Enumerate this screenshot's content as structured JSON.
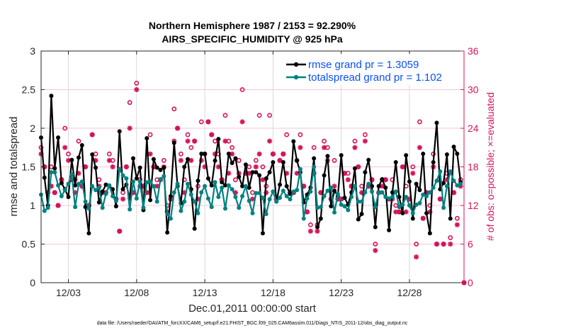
{
  "chart_data": {
    "type": "line",
    "title": [
      "Northern Hemisphere 1987 / 2153 = 92.290%",
      "AIRS_SPECIFIC_HUMIDITY @ 925 hPa"
    ],
    "xlabel": "Dec.01,2011 00:00:00 start",
    "ylabel": "rmse and totalspread",
    "y2label": "# of obs: o=possible; ×=evaluated",
    "footnote": "data file: /Users/raeder/DAI/ATM_forcXX/CAM6_setup/f.e21.FHIST_BGC.f09_025.CAM6assim.011/Diags_NTrS_2011-12/obs_diag_output.nc",
    "x_start_day": 1,
    "x_step_days": 0.25,
    "xlim": [
      1,
      32
    ],
    "ylim": [
      0,
      3
    ],
    "y2lim": [
      0,
      36
    ],
    "xticks": [
      3,
      8,
      13,
      18,
      23,
      28
    ],
    "xtick_labels": [
      "12/03",
      "12/08",
      "12/13",
      "12/18",
      "12/23",
      "12/28"
    ],
    "yticks": [
      "0",
      "0.5",
      "1",
      "1.5",
      "2",
      "2.5",
      "3"
    ],
    "y2ticks": [
      "0",
      "6",
      "12",
      "18",
      "24",
      "30",
      "36"
    ],
    "grid": true,
    "legend_position": "top-right",
    "colors": {
      "rmse": "#000000",
      "spread": "#008080",
      "obs": "#d4145a",
      "legend_text": "#0a50ff",
      "grid_v": "#d9d9d9",
      "grid_h": "#f5c6d6"
    },
    "series": [
      {
        "name": "rmse grand pr = 1.3059",
        "axis": "left",
        "values": [
          1.88,
          1.36,
          1.0,
          2.42,
          1.48,
          1.88,
          1.29,
          1.21,
          1.11,
          1.59,
          1.26,
          1.62,
          1.78,
          0.98,
          0.64,
          1.66,
          1.49,
          1.04,
          1.18,
          1.27,
          1.25,
          1.21,
          0.99,
          1.96,
          1.21,
          1.27,
          1.09,
          1.61,
          1.35,
          1.49,
          0.94,
          1.87,
          1.07,
          1.6,
          1.49,
          1.46,
          1.49,
          0.65,
          1.12,
          1.81,
          1.25,
          1.03,
          1.5,
          1.6,
          1.21,
          0.7,
          1.32,
          1.67,
          1.67,
          1.35,
          1.26,
          1.58,
          1.86,
          1.3,
          1.26,
          1.67,
          1.55,
          1.61,
          1.37,
          1.25,
          1.53,
          1.23,
          1.43,
          1.43,
          1.39,
          0.64,
          1.35,
          1.43,
          1.56,
          1.05,
          1.27,
          1.56,
          1.25,
          1.15,
          1.83,
          1.58,
          1.43,
          1.04,
          1.14,
          1.23,
          1.61,
          0.72,
          0.83,
          1.39,
          1.64,
          0.99,
          1.19,
          1.12,
          1.65,
          1.1,
          1.01,
          1.17,
          1.48,
          0.82,
          0.89,
          1.43,
          1.59,
          1.25,
          0.72,
          1.25,
          1.34,
          1.23,
          0.68,
          1.17,
          1.56,
          1.11,
          0.9,
          1.65,
          1.31,
          0.83,
          1.28,
          1.2,
          1.67,
          0.9,
          0.64,
          1.56,
          2.07,
          1.21,
          1.29,
          1.66,
          0.83,
          1.76,
          1.67,
          1.3,
          null
        ]
      },
      {
        "name": "totalspread grand pr = 1.102",
        "axis": "left",
        "values": [
          1.14,
          0.93,
          0.97,
          1.43,
          1.43,
          1.26,
          1.12,
          1.2,
          1.28,
          1.4,
          0.98,
          1.28,
          1.31,
          1.05,
          0.96,
          1.25,
          1.2,
          1.23,
          0.97,
          1.15,
          1.26,
          1.12,
          1.06,
          1.47,
          1.39,
          1.35,
          0.95,
          1.31,
          1.09,
          1.31,
          0.97,
          1.3,
          1.31,
          1.25,
          1.05,
          1.34,
          1.38,
          0.89,
          0.83,
          1.17,
          1.28,
          0.93,
          1.05,
          1.28,
          1.14,
          1.05,
          0.9,
          1.17,
          1.25,
          1.09,
          0.98,
          1.3,
          1.11,
          1.23,
          0.96,
          1.26,
          1.21,
          1.11,
          0.97,
          1.12,
          1.25,
          1.06,
          0.9,
          1.16,
          1.16,
          1.1,
          0.89,
          1.08,
          1.18,
          1.05,
          1.1,
          1.19,
          1.12,
          1.08,
          1.18,
          1.2,
          1.47,
          0.83,
          1.09,
          1.18,
          1.5,
          0.97,
          0.98,
          1.12,
          1.19,
          1.23,
          0.91,
          1.15,
          1.01,
          0.99,
          0.94,
          1.11,
          1.25,
          1.05,
          1.05,
          1.17,
          1.28,
          1.18,
          0.98,
          1.17,
          1.17,
          1.11,
          1.09,
          1.11,
          1.18,
          0.98,
          1.01,
          1.11,
          1.0,
          0.9,
          1.01,
          1.03,
          1.14,
          1.12,
          1.17,
          1.23,
          1.32,
          1.44,
          0.97,
          1.25,
          1.44,
          1.32,
          1.26,
          1.28,
          null
        ]
      },
      {
        "name": "possible",
        "axis": "right",
        "marker": "o",
        "values": [
          21,
          18,
          14,
          18,
          14,
          12,
          16,
          24,
          20,
          16,
          16,
          22,
          15,
          18,
          12,
          23,
          20,
          16,
          14,
          14,
          20,
          19,
          13,
          8,
          14,
          18,
          28,
          14,
          31,
          16,
          15,
          14,
          23,
          18,
          16,
          16,
          19,
          12,
          13,
          27,
          24,
          20,
          16,
          23,
          21,
          22,
          15,
          25,
          20,
          25,
          23,
          22,
          20,
          16,
          26,
          22,
          21,
          16,
          19,
          30,
          17,
          18,
          14,
          19,
          26,
          18,
          15,
          26,
          20,
          13,
          19,
          20,
          23,
          14,
          14,
          19,
          23,
          15,
          11,
          9,
          21,
          9,
          14,
          22,
          21,
          13,
          19,
          13,
          13,
          17,
          17,
          15,
          22,
          18,
          15,
          23,
          15,
          16,
          6,
          14,
          16,
          16,
          13,
          16,
          12,
          11,
          18,
          15,
          13,
          18,
          6,
          25,
          10,
          14,
          12,
          20,
          6,
          13,
          6,
          17,
          7,
          14,
          10,
          16,
          0
        ]
      },
      {
        "name": "evaluated",
        "axis": "right",
        "marker": "x",
        "values": [
          20,
          18,
          14,
          15,
          14,
          12,
          16,
          21,
          19,
          16,
          14,
          17,
          15,
          18,
          12,
          23,
          19,
          15,
          14,
          14,
          19,
          18,
          13,
          8,
          13,
          18,
          24,
          14,
          30,
          15,
          15,
          14,
          20,
          18,
          15,
          16,
          18,
          11,
          13,
          22,
          24,
          19,
          14,
          22,
          19,
          22,
          13,
          19,
          18,
          25,
          23,
          20,
          18,
          16,
          22,
          17,
          20,
          14,
          17,
          25,
          17,
          17,
          13,
          18,
          20,
          16,
          14,
          22,
          20,
          13,
          19,
          20,
          17,
          14,
          14,
          17,
          21,
          15,
          11,
          8,
          17,
          8,
          14,
          21,
          19,
          13,
          15,
          13,
          13,
          17,
          16,
          15,
          21,
          18,
          14,
          22,
          15,
          16,
          5,
          14,
          15,
          16,
          13,
          13,
          11,
          11,
          18,
          11,
          13,
          17,
          4,
          21,
          10,
          14,
          11,
          18,
          6,
          13,
          6,
          16,
          6,
          14,
          9,
          15,
          0
        ]
      }
    ]
  }
}
